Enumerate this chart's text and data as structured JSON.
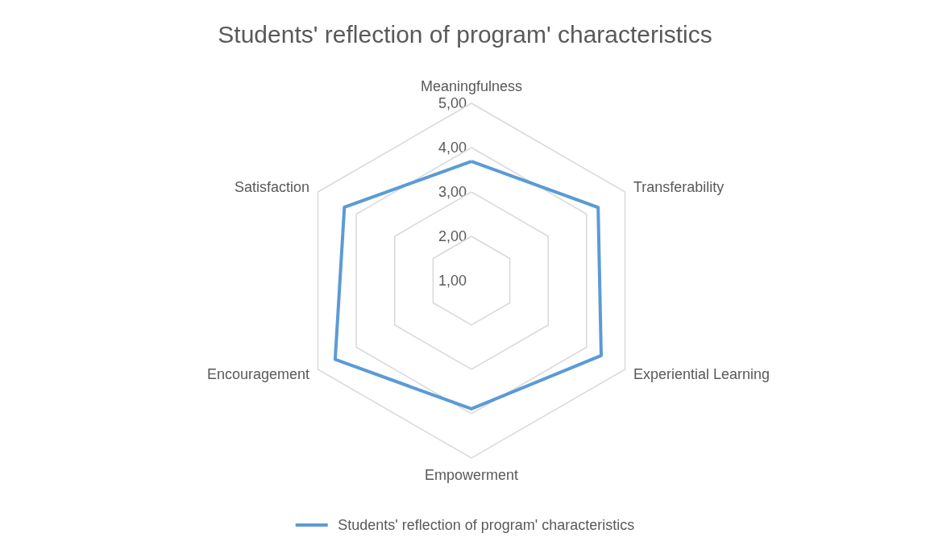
{
  "chart_data": {
    "type": "radar",
    "title": "Students' reflection of program' characteristics",
    "categories": [
      "Meaningfulness",
      "Transferability",
      "Experiential Learning",
      "Empowerment",
      "Encouragement",
      "Satisfaction"
    ],
    "series": [
      {
        "name": "Students' reflection of program' characteristics",
        "color": "#5b9bd5",
        "values": [
          3.69,
          4.3,
          4.38,
          3.89,
          4.55,
          4.31
        ]
      }
    ],
    "ylim": [
      1,
      5
    ],
    "yticks": [
      {
        "value": 1,
        "label": "1,00"
      },
      {
        "value": 2,
        "label": "2,00"
      },
      {
        "value": 3,
        "label": "3,00"
      },
      {
        "value": 4,
        "label": "4,00"
      },
      {
        "value": 5,
        "label": "5,00"
      }
    ],
    "grid": true,
    "legend": "bottom",
    "marker": "none",
    "line_style": "solid"
  }
}
